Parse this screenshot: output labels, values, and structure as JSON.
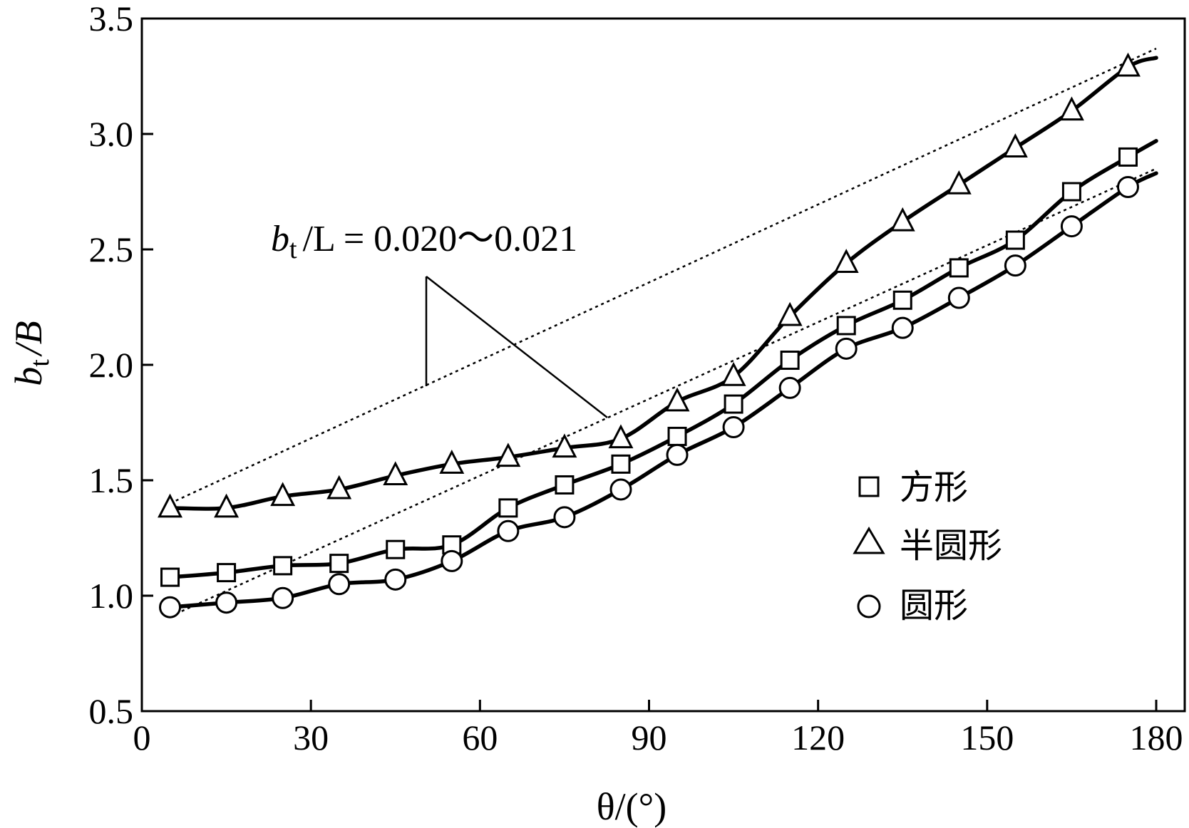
{
  "chart_data": {
    "type": "line",
    "title": "",
    "xlabel": "θ/(°)",
    "ylabel_parts": {
      "b": "b",
      "sub": "t",
      "rest": "/B"
    },
    "xlim": [
      0,
      182
    ],
    "ylim": [
      0.5,
      3.5
    ],
    "xticks": [
      "0",
      "30",
      "60",
      "90",
      "120",
      "150",
      "180"
    ],
    "yticks": [
      "0.5",
      "1.0",
      "1.5",
      "2.0",
      "2.5",
      "3.0",
      "3.5"
    ],
    "grid": false,
    "legend_position": "lower-right",
    "series": [
      {
        "name": "方形",
        "marker": "square",
        "x": [
          5,
          15,
          25,
          35,
          45,
          55,
          65,
          75,
          85,
          95,
          105,
          115,
          125,
          135,
          145,
          155,
          165,
          175
        ],
        "y": [
          1.08,
          1.1,
          1.13,
          1.14,
          1.2,
          1.22,
          1.38,
          1.48,
          1.57,
          1.69,
          1.83,
          2.02,
          2.17,
          2.28,
          2.42,
          2.54,
          2.75,
          2.9
        ],
        "curve_end": [
          180,
          2.97
        ]
      },
      {
        "name": "半圆形",
        "marker": "triangle",
        "x": [
          5,
          15,
          25,
          35,
          45,
          55,
          65,
          75,
          85,
          95,
          105,
          115,
          125,
          135,
          145,
          155,
          165,
          175
        ],
        "y": [
          1.38,
          1.38,
          1.43,
          1.46,
          1.52,
          1.57,
          1.6,
          1.64,
          1.68,
          1.84,
          1.95,
          2.21,
          2.44,
          2.62,
          2.78,
          2.94,
          3.1,
          3.29
        ],
        "curve_end": [
          180,
          3.33
        ]
      },
      {
        "name": "圆形",
        "marker": "circle",
        "x": [
          5,
          15,
          25,
          35,
          45,
          55,
          65,
          75,
          85,
          95,
          105,
          115,
          125,
          135,
          145,
          155,
          165,
          175
        ],
        "y": [
          0.95,
          0.97,
          0.99,
          1.05,
          1.07,
          1.15,
          1.28,
          1.34,
          1.46,
          1.61,
          1.73,
          1.9,
          2.07,
          2.16,
          2.29,
          2.43,
          2.6,
          2.77
        ],
        "curve_end": [
          180,
          2.83
        ]
      }
    ],
    "reference_lines": [
      {
        "from": [
          5,
          1.4
        ],
        "to": [
          180,
          3.37
        ]
      },
      {
        "from": [
          5,
          0.91
        ],
        "to": [
          180,
          2.85
        ]
      }
    ],
    "annotation": {
      "b": "b",
      "sub": "t",
      "rest": "/L = 0.020～0.021"
    }
  }
}
